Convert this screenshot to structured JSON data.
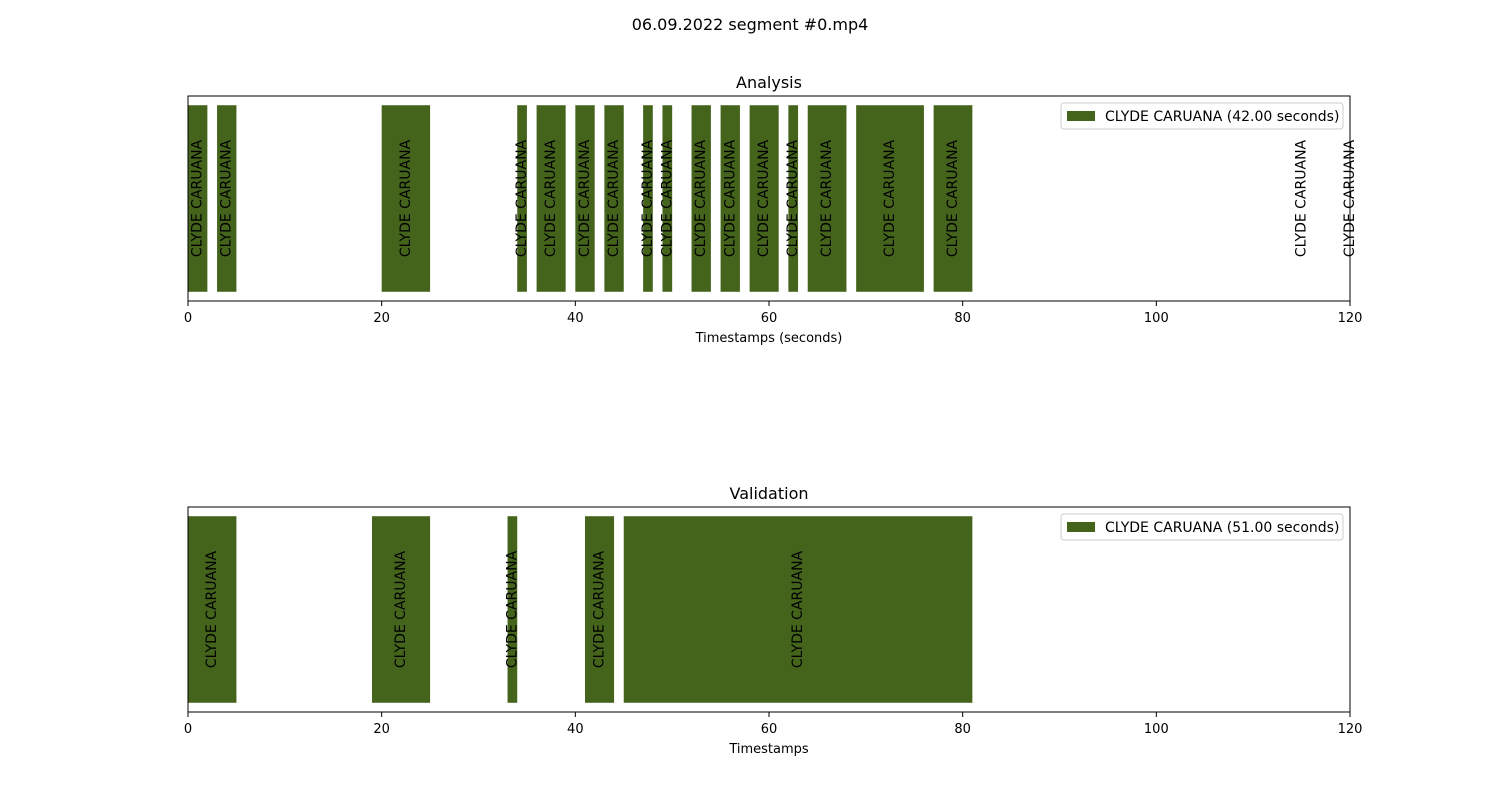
{
  "figure_title": "06.09.2022 segment #0.mp4",
  "colors": {
    "bar": "#44641b",
    "axis": "#000000",
    "background": "#ffffff"
  },
  "chart_data": [
    {
      "type": "bar",
      "title": "Analysis",
      "xlabel": "Timestamps (seconds)",
      "ylabel": "",
      "xlim": [
        0,
        120
      ],
      "x_ticks": [
        0,
        20,
        40,
        60,
        80,
        100,
        120
      ],
      "grid": false,
      "legend": {
        "placement": "top-right",
        "label": "CLYDE CARUANA (42.00 seconds)"
      },
      "bar_label": "CLYDE CARUANA",
      "segments": [
        {
          "start": 0,
          "end": 2
        },
        {
          "start": 3,
          "end": 5
        },
        {
          "start": 20,
          "end": 25
        },
        {
          "start": 34,
          "end": 35
        },
        {
          "start": 36,
          "end": 39
        },
        {
          "start": 40,
          "end": 42
        },
        {
          "start": 43,
          "end": 45
        },
        {
          "start": 47,
          "end": 48
        },
        {
          "start": 49,
          "end": 50
        },
        {
          "start": 52,
          "end": 54
        },
        {
          "start": 55,
          "end": 57
        },
        {
          "start": 58,
          "end": 61
        },
        {
          "start": 62,
          "end": 63
        },
        {
          "start": 64,
          "end": 68
        },
        {
          "start": 69,
          "end": 76
        },
        {
          "start": 77,
          "end": 81
        },
        {
          "start": 115,
          "end": 115
        },
        {
          "start": 120,
          "end": 120
        }
      ]
    },
    {
      "type": "bar",
      "title": "Validation",
      "xlabel": "Timestamps",
      "ylabel": "",
      "xlim": [
        0,
        120
      ],
      "x_ticks": [
        0,
        20,
        40,
        60,
        80,
        100,
        120
      ],
      "grid": false,
      "legend": {
        "placement": "top-right",
        "label": "CLYDE CARUANA (51.00 seconds)"
      },
      "bar_label": "CLYDE CARUANA",
      "segments": [
        {
          "start": 0,
          "end": 5
        },
        {
          "start": 19,
          "end": 25
        },
        {
          "start": 33,
          "end": 34
        },
        {
          "start": 41,
          "end": 44
        },
        {
          "start": 45,
          "end": 81
        }
      ]
    }
  ]
}
